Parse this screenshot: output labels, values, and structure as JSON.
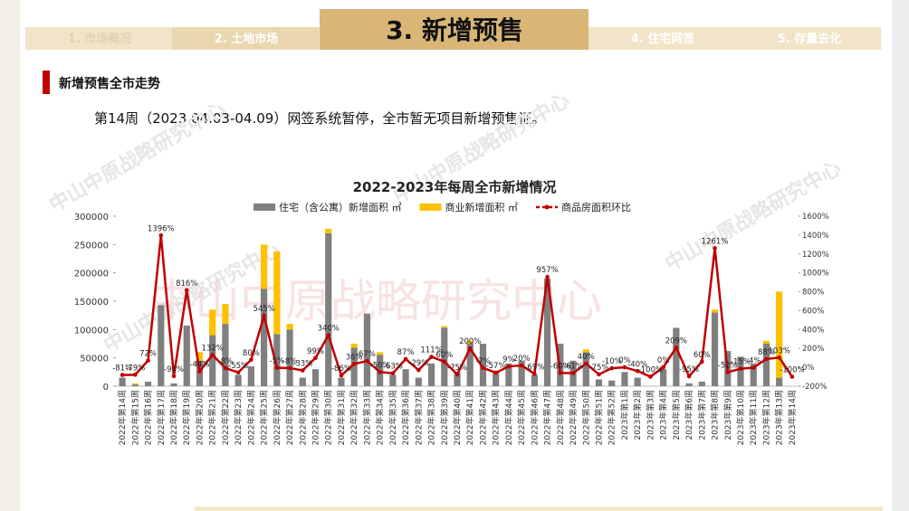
{
  "header": {
    "tabs": [
      "1. 市场概况",
      "2. 土地市场",
      "3. 新增预售",
      "4. 住宅网签",
      "5. 存量去化"
    ]
  },
  "section_title": "新增预售全市走势",
  "summary": "第14周（2023.04.03-04.09）网签系统暂停，全市暂无项目新增预售证。",
  "watermarks": [
    "中山中原战略研究中心",
    "中山中原战略研究中心",
    "中山中原战略研究中心",
    "中山中原战略研究中心",
    "中山中原战略研究中心"
  ],
  "chart_data": {
    "type": "bar-line",
    "title": "2022-2023年每周全市新增情况",
    "categories": [
      "2022年第14周",
      "2022年第15周",
      "2022年第16周",
      "2022年第17周",
      "2022年第18周",
      "2022年第19周",
      "2022年第20周",
      "2022年第21周",
      "2022年第22周",
      "2022年第23周",
      "2022年第24周",
      "2022年第25周",
      "2022年第26周",
      "2022年第27周",
      "2022年第28周",
      "2022年第29周",
      "2022年第30周",
      "2022年第31周",
      "2022年第32周",
      "2022年第33周",
      "2022年第34周",
      "2022年第35周",
      "2022年第36周",
      "2022年第37周",
      "2022年第38周",
      "2022年第39周",
      "2022年第40周",
      "2022年第41周",
      "2022年第42周",
      "2022年第43周",
      "2022年第44周",
      "2022年第45周",
      "2022年第46周",
      "2022年第47周",
      "2022年第48周",
      "2022年第49周",
      "2022年第50周",
      "2022年第51周",
      "2022年第52周",
      "2023年第1周",
      "2023年第2周",
      "2023年第3周",
      "2023年第4周",
      "2023年第5周",
      "2023年第6周",
      "2023年第7周",
      "2023年第8周",
      "2023年第9周",
      "2023年第10周",
      "2023年第11周",
      "2023年第12周",
      "2023年第13周",
      "2023年第14周"
    ],
    "series": [
      {
        "name": "住宅（含公寓）新增面积 ㎡",
        "color": "#808080",
        "stack": true,
        "values": [
          15000,
          3000,
          8000,
          143000,
          5000,
          107000,
          45000,
          90000,
          110000,
          20000,
          35000,
          172000,
          92000,
          100000,
          15000,
          30000,
          270000,
          15000,
          68000,
          128000,
          55000,
          20000,
          30000,
          15000,
          40000,
          103000,
          25000,
          75000,
          75000,
          25000,
          40000,
          45000,
          20000,
          190000,
          75000,
          45000,
          60000,
          12000,
          10000,
          25000,
          15000,
          0,
          30000,
          103000,
          5000,
          8000,
          130000,
          62000,
          52000,
          40000,
          75000,
          15000,
          0
        ]
      },
      {
        "name": "商业新增面积 ㎡",
        "color": "#ffc000",
        "stack": true,
        "values": [
          0,
          2000,
          0,
          0,
          0,
          0,
          15000,
          45000,
          35000,
          0,
          0,
          78000,
          146000,
          10000,
          0,
          0,
          8000,
          0,
          7000,
          0,
          5000,
          0,
          0,
          0,
          0,
          3000,
          0,
          5000,
          0,
          0,
          0,
          0,
          0,
          0,
          0,
          0,
          5000,
          0,
          0,
          0,
          0,
          0,
          0,
          0,
          0,
          0,
          5000,
          0,
          0,
          0,
          5000,
          152000,
          0
        ]
      },
      {
        "name": "商品房面积环比",
        "color": "#c00000",
        "axis": "y2",
        "values": [
          -81,
          -79,
          72,
          1396,
          -94,
          816,
          -44,
          132,
          -8,
          -55,
          80,
          545,
          -5,
          -8,
          -33,
          99,
          340,
          -86,
          36,
          67,
          -50,
          -63,
          87,
          -29,
          111,
          60,
          -75,
          200,
          -7,
          -57,
          9,
          20,
          -69,
          957,
          -60,
          -61,
          40,
          -75,
          -10,
          0,
          -40,
          -100,
          0,
          209,
          -95,
          60,
          1261,
          -52,
          -15,
          -4,
          88,
          103,
          -100
        ],
        "value_labels": [
          "-81%",
          "-79%",
          "72%",
          "1396%",
          "-94%",
          "816%",
          "-44%",
          "132%",
          "-8%",
          "-55%",
          "80%",
          "545%",
          "-5%",
          "-8%",
          "-33%",
          "99%",
          "340%",
          "-86%",
          "36%",
          "67%",
          "-50%",
          "-63%",
          "87%",
          "-29%",
          "111%",
          "60%",
          "-75%",
          "200%",
          "-7%",
          "-57%",
          "9%",
          "20%",
          "-69%",
          "957%",
          "-60%",
          "-61%",
          "40%",
          "-75%",
          "-10%",
          "0%",
          "-40%",
          "-100%",
          "0%",
          "209%",
          "-95%",
          "60%",
          "1261%",
          "-52%",
          "-15%",
          "-4%",
          "88%",
          "103%",
          "-100%"
        ]
      }
    ],
    "ylim": [
      0,
      300000
    ],
    "yticks": [
      0,
      50000,
      100000,
      150000,
      200000,
      250000,
      300000
    ],
    "y2lim": [
      -200,
      1600
    ],
    "y2ticks": [
      {
        "value": -200,
        "label": "-200%"
      },
      {
        "value": 0,
        "label": "0%"
      },
      {
        "value": 200,
        "label": "200%"
      },
      {
        "value": 400,
        "label": "400%"
      },
      {
        "value": 600,
        "label": "600%"
      },
      {
        "value": 800,
        "label": "800%"
      },
      {
        "value": 1000,
        "label": "1000%"
      },
      {
        "value": 1200,
        "label": "1200%"
      },
      {
        "value": 1400,
        "label": "1400%"
      },
      {
        "value": 1600,
        "label": "1600%"
      }
    ]
  }
}
